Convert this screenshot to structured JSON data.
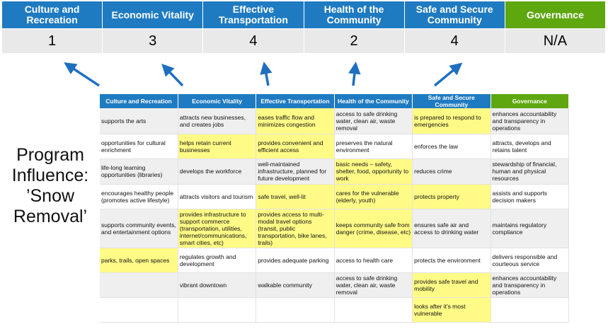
{
  "colors": {
    "header_blue": "#1f7bc1",
    "governance_green": "#5ea70f",
    "highlight": "#fffb86",
    "arrow": "#1f6fc0"
  },
  "scores": [
    {
      "category": "Culture and Recreation",
      "value": "1"
    },
    {
      "category": "Economic Vitality",
      "value": "3"
    },
    {
      "category": "Effective Transportation",
      "value": "4"
    },
    {
      "category": "Health of the Community",
      "value": "2"
    },
    {
      "category": "Safe and Secure Community",
      "value": "4"
    },
    {
      "category": "Governance",
      "value": "N/A"
    }
  ],
  "program_label": "Program Influence: ’Snow Removal’",
  "table": {
    "headers": [
      "Culture and Recreation",
      "Economic Vitality",
      "Effective Transportation",
      "Health of the Community",
      "Safe and Secure Community",
      "Governance"
    ],
    "rows": [
      [
        {
          "t": "supports the arts"
        },
        {
          "t": "attracts new businesses, and creates jobs"
        },
        {
          "t": "eases traffic flow and minimizes congestion",
          "h": true
        },
        {
          "t": "access to safe drinking water, clean air, waste removal"
        },
        {
          "t": "is prepared to respond to emergencies",
          "h": true
        },
        {
          "t": "enhances accountability and transparency in operations"
        }
      ],
      [
        {
          "t": "opportunities for cultural enrichment"
        },
        {
          "t": "helps retain current businesses",
          "h": true
        },
        {
          "t": "provides convenient and efficient access",
          "h": true
        },
        {
          "t": "preserves the natural environment"
        },
        {
          "t": "enforces the law"
        },
        {
          "t": "attracts, develops and retains talent"
        }
      ],
      [
        {
          "t": "life-long learning opportunities (libraries)"
        },
        {
          "t": "develops the workforce"
        },
        {
          "t": "well-maintained infrastructure, planned for future development"
        },
        {
          "t": "basic needs – safety, shelter, food, opportunity to work",
          "h": true
        },
        {
          "t": "reduces crime"
        },
        {
          "t": "stewardship of financial, human and physical resources"
        }
      ],
      [
        {
          "t": "encourages healthy people (promotes active lifestyle)"
        },
        {
          "t": "attracts visitors and tourism"
        },
        {
          "t": "safe travel, well-lit",
          "h": true
        },
        {
          "t": "cares for the vulnerable (elderly, youth)",
          "h": true
        },
        {
          "t": "protects property",
          "h": true
        },
        {
          "t": "assists and supports decision makers"
        }
      ],
      [
        {
          "t": "supports community events, and entertainment options"
        },
        {
          "t": "provides infrastructure to support commerce (transportation, utilities, internet/communications, smart cities, etc)",
          "h": true
        },
        {
          "t": "provides access to multi-modal travel options (transit, public transportation, bike lanes, trails)",
          "h": true
        },
        {
          "t": "keeps community safe from danger (crime, disease, etc)",
          "h": true
        },
        {
          "t": "ensures safe air and access to drinking water"
        },
        {
          "t": "maintains regulatory compliance"
        }
      ],
      [
        {
          "t": "parks, trails, open spaces",
          "h": true
        },
        {
          "t": "regulates growth and development"
        },
        {
          "t": "provides adequate parking"
        },
        {
          "t": "access to health care"
        },
        {
          "t": "protects the environment"
        },
        {
          "t": "delivers responsible and courteous service"
        }
      ],
      [
        {
          "t": ""
        },
        {
          "t": "vibrant downtown"
        },
        {
          "t": "walkable community"
        },
        {
          "t": "access to safe drinking water, clean air, waste removal"
        },
        {
          "t": "provides safe travel and mobility",
          "h": true
        },
        {
          "t": "enhances accountability and transparency in operations"
        }
      ],
      [
        {
          "t": ""
        },
        {
          "t": ""
        },
        {
          "t": ""
        },
        {
          "t": ""
        },
        {
          "t": "looks after it's most vulnerable",
          "h": true
        },
        {
          "t": ""
        }
      ]
    ]
  }
}
